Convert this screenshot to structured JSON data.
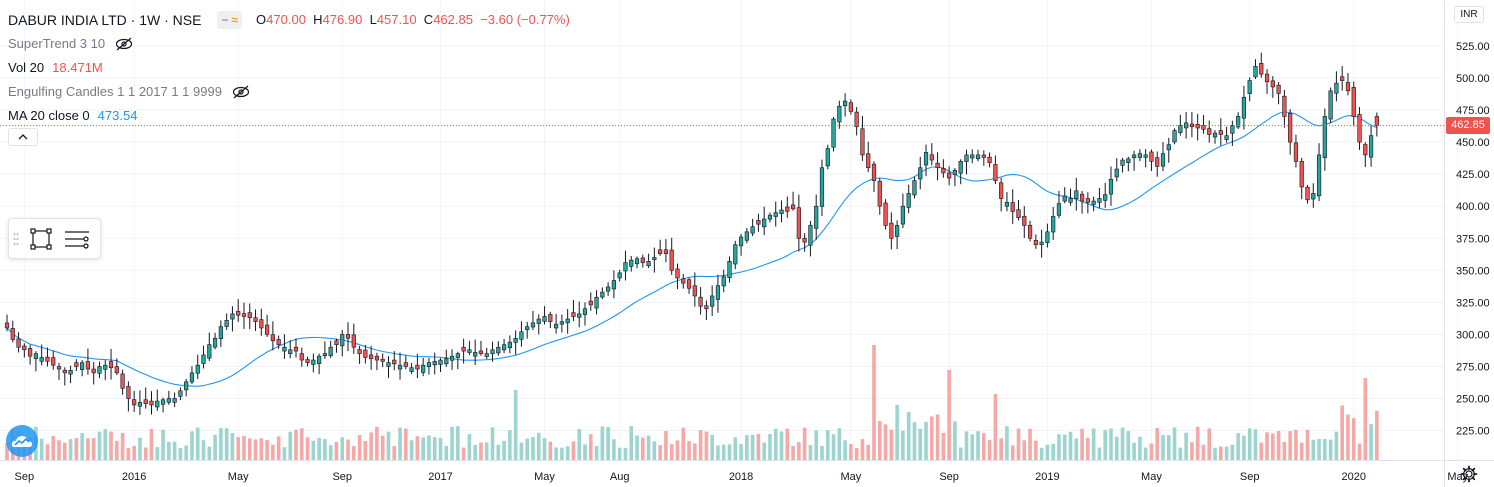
{
  "header": {
    "symbol": "DABUR INDIA LTD · 1W · NSE",
    "open_label": "O",
    "open": "470.00",
    "high_label": "H",
    "high": "476.90",
    "low_label": "L",
    "low": "457.10",
    "close_label": "C",
    "close": "462.85",
    "change": "−3.60 (−0.77%)"
  },
  "indicators": [
    {
      "name": "SuperTrend 3 10",
      "value": "",
      "hidden": true
    },
    {
      "name": "Vol 20",
      "value": "18.471M",
      "value_color": "#ef5350"
    },
    {
      "name": "Engulfing Candles 1 1 2017 1 1 9999",
      "value": "",
      "hidden": true
    },
    {
      "name": "MA 20 close 0",
      "value": "473.54",
      "value_color": "#2196f3"
    }
  ],
  "price_axis": {
    "currency": "INR",
    "current_price": "462.85"
  },
  "colors": {
    "up": "#26a69a",
    "down": "#ef5350",
    "ma": "#2196f3",
    "vol_up": "#9cd5cf",
    "vol_down": "#f5a8a6"
  },
  "chart_data": {
    "type": "candlestick",
    "y_ticks": [
      225,
      250,
      275,
      300,
      325,
      350,
      375,
      400,
      425,
      450,
      475,
      500,
      525
    ],
    "ylim": [
      202,
      537
    ],
    "x_ticks": [
      "Sep",
      "2016",
      "May",
      "Sep",
      "2017",
      "May",
      "Aug",
      "2018",
      "May",
      "Sep",
      "2019",
      "May",
      "Sep",
      "2020",
      "May"
    ],
    "x_tick_weeks": [
      3,
      22,
      40,
      58,
      75,
      93,
      106,
      127,
      146,
      163,
      180,
      198,
      215,
      233,
      251
    ],
    "close_path_weekly": [
      305,
      296,
      290,
      288,
      283,
      285,
      282,
      279,
      276,
      273,
      270,
      272,
      275,
      278,
      273,
      270,
      275,
      276,
      274,
      270,
      258,
      250,
      245,
      247,
      246,
      245,
      248,
      249,
      250,
      250,
      256,
      263,
      270,
      276,
      284,
      292,
      297,
      306,
      311,
      316,
      315,
      314,
      313,
      310,
      305,
      300,
      295,
      292,
      290,
      288,
      287,
      280,
      278,
      280,
      283,
      285,
      290,
      292,
      300,
      297,
      290,
      285,
      282,
      281,
      280,
      279,
      278,
      277,
      276,
      275,
      274,
      273,
      276,
      278,
      279,
      280,
      281,
      283,
      285,
      287,
      288,
      286,
      285,
      285,
      288,
      290,
      292,
      294,
      297,
      302,
      306,
      309,
      312,
      314,
      310,
      308,
      310,
      312,
      314,
      316,
      320,
      323,
      329,
      333,
      337,
      342,
      348,
      356,
      358,
      359,
      356,
      357,
      360,
      363,
      363,
      350,
      344,
      340,
      336,
      330,
      322,
      320,
      330,
      338,
      345,
      357,
      370,
      376,
      380,
      384,
      386,
      390,
      393,
      395,
      397,
      396,
      398,
      375,
      372,
      385,
      400,
      430,
      445,
      468,
      478,
      482,
      474,
      462,
      440,
      430,
      420,
      400,
      385,
      375,
      385,
      400,
      410,
      420,
      430,
      442,
      436,
      430,
      426,
      422,
      428,
      435,
      440,
      440,
      440,
      438,
      434,
      420,
      406,
      403,
      396,
      391,
      385,
      375,
      370,
      372,
      380,
      392,
      402,
      408,
      406,
      412,
      404,
      403,
      404,
      406,
      409,
      421,
      429,
      436,
      437,
      440,
      441,
      440,
      435,
      431,
      441,
      448,
      459,
      463,
      465,
      462,
      461,
      460,
      456,
      457,
      456,
      455,
      463,
      470,
      485,
      498,
      509,
      503,
      497,
      493,
      488,
      470,
      450,
      435,
      415,
      405,
      410,
      440,
      470,
      490,
      496,
      498,
      490,
      470,
      450,
      440,
      455,
      463
    ]
  }
}
